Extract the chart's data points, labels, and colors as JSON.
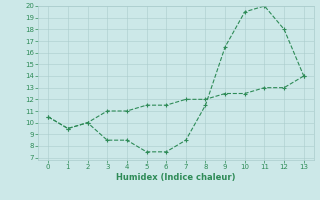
{
  "line1_x": [
    0,
    1,
    2,
    3,
    4,
    5,
    6,
    7,
    8,
    9,
    10,
    11,
    12,
    13
  ],
  "line1_y": [
    10.5,
    9.5,
    10.0,
    11.0,
    11.0,
    11.5,
    11.5,
    12.0,
    12.0,
    12.5,
    12.5,
    13.0,
    13.0,
    14.0
  ],
  "line2_x": [
    0,
    1,
    2,
    3,
    4,
    5,
    6,
    7,
    8,
    9,
    10,
    11,
    12,
    13
  ],
  "line2_y": [
    10.5,
    9.5,
    10.0,
    8.5,
    8.5,
    7.5,
    7.5,
    8.5,
    11.5,
    16.5,
    19.5,
    20.0,
    18.0,
    14.0
  ],
  "color": "#2e8b57",
  "xlabel": "Humidex (Indice chaleur)",
  "xlim": [
    -0.5,
    13.5
  ],
  "ylim": [
    7,
    20
  ],
  "yticks": [
    7,
    8,
    9,
    10,
    11,
    12,
    13,
    14,
    15,
    16,
    17,
    18,
    19,
    20
  ],
  "xticks": [
    0,
    1,
    2,
    3,
    4,
    5,
    6,
    7,
    8,
    9,
    10,
    11,
    12,
    13
  ],
  "bg_color": "#cce8e8",
  "grid_color": "#aacccc"
}
